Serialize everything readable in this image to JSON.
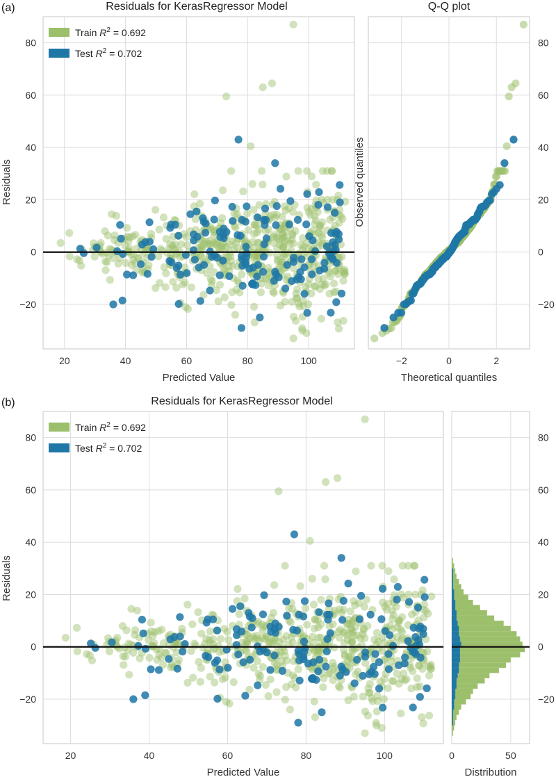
{
  "chart_data": [
    {
      "panel_label": "(a)",
      "type": "scatter",
      "title": "Residuals for KerasRegressor Model",
      "xlabel": "Predicted Value",
      "ylabel": "Residuals",
      "xlim": [
        13,
        115
      ],
      "ylim": [
        -37,
        90
      ],
      "xticks": [
        "20",
        "40",
        "60",
        "80",
        "100"
      ],
      "yticks": [
        "−20",
        "0",
        "20",
        "40",
        "60",
        "80"
      ],
      "legend": [
        {
          "name": "Train",
          "r2_label": "R",
          "r2_sup": "2",
          "r2_value": " = 0.692",
          "color": "#9cbf6b"
        },
        {
          "name": "Test",
          "r2_label": "R",
          "r2_sup": "2",
          "r2_value": " = 0.702",
          "color": "#1f77a6"
        }
      ],
      "hline": 0,
      "series": [
        {
          "name": "Train",
          "approx_count": 600,
          "x_range": [
            17,
            112
          ],
          "residual_sd": 11,
          "outliers": [
            [
              95,
              87
            ],
            [
              88,
              64.5
            ],
            [
              85,
              63
            ],
            [
              73,
              59.5
            ],
            [
              81,
              40.5
            ],
            [
              95,
              -33
            ]
          ]
        },
        {
          "name": "Test",
          "approx_count": 150,
          "x_range": [
            21,
            111
          ],
          "residual_sd": 10,
          "outliers": [
            [
              77,
              43
            ],
            [
              89,
              34
            ],
            [
              36,
              -20
            ],
            [
              39,
              -18.5
            ],
            [
              78,
              -29
            ],
            [
              84,
              -25
            ]
          ]
        }
      ]
    },
    {
      "type": "scatter",
      "title": "Q-Q plot",
      "xlabel": "Theoretical quantiles",
      "ylabel": "Observed quantiles",
      "xlim": [
        -3.4,
        3.4
      ],
      "ylim": [
        -37,
        90
      ],
      "xticks": [
        "−2",
        "0",
        "2"
      ],
      "yticks": [
        "−20",
        "0",
        "20",
        "40",
        "60",
        "80"
      ],
      "trend": {
        "x_from": -3.2,
        "y_from": -33,
        "x_to": 3.1,
        "y_to": 87
      }
    },
    {
      "panel_label": "(b)",
      "type": "scatter",
      "title": "Residuals for KerasRegressor Model",
      "xlabel": "Predicted Value",
      "ylabel": "Residuals",
      "xlim": [
        13,
        115
      ],
      "ylim": [
        -37,
        90
      ],
      "xticks": [
        "20",
        "40",
        "60",
        "80",
        "100"
      ],
      "yticks": [
        "−20",
        "0",
        "20",
        "40",
        "60",
        "80"
      ],
      "legend": [
        {
          "name": "Train",
          "r2_label": "R",
          "r2_sup": "2",
          "r2_value": " = 0.692",
          "color": "#9cbf6b"
        },
        {
          "name": "Test",
          "r2_label": "R",
          "r2_sup": "2",
          "r2_value": " = 0.702",
          "color": "#1f77a6"
        }
      ],
      "hline": 0
    },
    {
      "type": "histogram",
      "orientation": "horizontal",
      "xlabel": "Distribution",
      "xlim": [
        0,
        66
      ],
      "xticks": [
        "0",
        "50"
      ],
      "yticks": [
        "−20",
        "0",
        "20",
        "40",
        "60",
        "80"
      ],
      "bin_width": 2,
      "bin_centers": [
        -33,
        -31,
        -29,
        -27,
        -25,
        -23,
        -21,
        -19,
        -17,
        -15,
        -13,
        -11,
        -9,
        -7,
        -5,
        -3,
        -1,
        1,
        3,
        5,
        7,
        9,
        11,
        13,
        15,
        17,
        19,
        21,
        23,
        25,
        27,
        29,
        31,
        33
      ],
      "train_counts": [
        1,
        2,
        3,
        4,
        6,
        8,
        12,
        16,
        18,
        22,
        28,
        32,
        40,
        46,
        50,
        58,
        62,
        60,
        58,
        55,
        50,
        44,
        36,
        30,
        24,
        18,
        14,
        10,
        8,
        6,
        4,
        3,
        2,
        1
      ],
      "test_counts": [
        0,
        0,
        1,
        1,
        1,
        2,
        2,
        3,
        3,
        4,
        4,
        5,
        6,
        6,
        7,
        7,
        7,
        8,
        7,
        6,
        6,
        5,
        4,
        4,
        3,
        3,
        2,
        2,
        1,
        1,
        1,
        1,
        0,
        0
      ]
    }
  ]
}
